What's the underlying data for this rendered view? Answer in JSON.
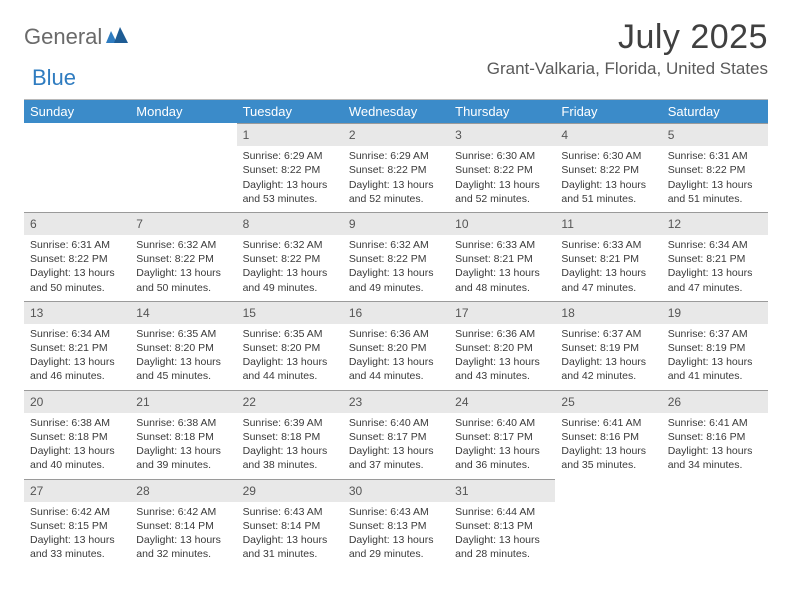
{
  "logo": {
    "word1": "General",
    "word2": "Blue"
  },
  "title": "July 2025",
  "location": "Grant-Valkaria, Florida, United States",
  "colors": {
    "header_bg": "#3b8bc9",
    "header_text": "#ffffff",
    "daynum_bg": "#e8e8e8",
    "rule": "#9a9a9a"
  },
  "weekdays": [
    "Sunday",
    "Monday",
    "Tuesday",
    "Wednesday",
    "Thursday",
    "Friday",
    "Saturday"
  ],
  "first_weekday_index": 2,
  "days": [
    {
      "n": 1,
      "sunrise": "6:29 AM",
      "sunset": "8:22 PM",
      "daylight": "13 hours and 53 minutes."
    },
    {
      "n": 2,
      "sunrise": "6:29 AM",
      "sunset": "8:22 PM",
      "daylight": "13 hours and 52 minutes."
    },
    {
      "n": 3,
      "sunrise": "6:30 AM",
      "sunset": "8:22 PM",
      "daylight": "13 hours and 52 minutes."
    },
    {
      "n": 4,
      "sunrise": "6:30 AM",
      "sunset": "8:22 PM",
      "daylight": "13 hours and 51 minutes."
    },
    {
      "n": 5,
      "sunrise": "6:31 AM",
      "sunset": "8:22 PM",
      "daylight": "13 hours and 51 minutes."
    },
    {
      "n": 6,
      "sunrise": "6:31 AM",
      "sunset": "8:22 PM",
      "daylight": "13 hours and 50 minutes."
    },
    {
      "n": 7,
      "sunrise": "6:32 AM",
      "sunset": "8:22 PM",
      "daylight": "13 hours and 50 minutes."
    },
    {
      "n": 8,
      "sunrise": "6:32 AM",
      "sunset": "8:22 PM",
      "daylight": "13 hours and 49 minutes."
    },
    {
      "n": 9,
      "sunrise": "6:32 AM",
      "sunset": "8:22 PM",
      "daylight": "13 hours and 49 minutes."
    },
    {
      "n": 10,
      "sunrise": "6:33 AM",
      "sunset": "8:21 PM",
      "daylight": "13 hours and 48 minutes."
    },
    {
      "n": 11,
      "sunrise": "6:33 AM",
      "sunset": "8:21 PM",
      "daylight": "13 hours and 47 minutes."
    },
    {
      "n": 12,
      "sunrise": "6:34 AM",
      "sunset": "8:21 PM",
      "daylight": "13 hours and 47 minutes."
    },
    {
      "n": 13,
      "sunrise": "6:34 AM",
      "sunset": "8:21 PM",
      "daylight": "13 hours and 46 minutes."
    },
    {
      "n": 14,
      "sunrise": "6:35 AM",
      "sunset": "8:20 PM",
      "daylight": "13 hours and 45 minutes."
    },
    {
      "n": 15,
      "sunrise": "6:35 AM",
      "sunset": "8:20 PM",
      "daylight": "13 hours and 44 minutes."
    },
    {
      "n": 16,
      "sunrise": "6:36 AM",
      "sunset": "8:20 PM",
      "daylight": "13 hours and 44 minutes."
    },
    {
      "n": 17,
      "sunrise": "6:36 AM",
      "sunset": "8:20 PM",
      "daylight": "13 hours and 43 minutes."
    },
    {
      "n": 18,
      "sunrise": "6:37 AM",
      "sunset": "8:19 PM",
      "daylight": "13 hours and 42 minutes."
    },
    {
      "n": 19,
      "sunrise": "6:37 AM",
      "sunset": "8:19 PM",
      "daylight": "13 hours and 41 minutes."
    },
    {
      "n": 20,
      "sunrise": "6:38 AM",
      "sunset": "8:18 PM",
      "daylight": "13 hours and 40 minutes."
    },
    {
      "n": 21,
      "sunrise": "6:38 AM",
      "sunset": "8:18 PM",
      "daylight": "13 hours and 39 minutes."
    },
    {
      "n": 22,
      "sunrise": "6:39 AM",
      "sunset": "8:18 PM",
      "daylight": "13 hours and 38 minutes."
    },
    {
      "n": 23,
      "sunrise": "6:40 AM",
      "sunset": "8:17 PM",
      "daylight": "13 hours and 37 minutes."
    },
    {
      "n": 24,
      "sunrise": "6:40 AM",
      "sunset": "8:17 PM",
      "daylight": "13 hours and 36 minutes."
    },
    {
      "n": 25,
      "sunrise": "6:41 AM",
      "sunset": "8:16 PM",
      "daylight": "13 hours and 35 minutes."
    },
    {
      "n": 26,
      "sunrise": "6:41 AM",
      "sunset": "8:16 PM",
      "daylight": "13 hours and 34 minutes."
    },
    {
      "n": 27,
      "sunrise": "6:42 AM",
      "sunset": "8:15 PM",
      "daylight": "13 hours and 33 minutes."
    },
    {
      "n": 28,
      "sunrise": "6:42 AM",
      "sunset": "8:14 PM",
      "daylight": "13 hours and 32 minutes."
    },
    {
      "n": 29,
      "sunrise": "6:43 AM",
      "sunset": "8:14 PM",
      "daylight": "13 hours and 31 minutes."
    },
    {
      "n": 30,
      "sunrise": "6:43 AM",
      "sunset": "8:13 PM",
      "daylight": "13 hours and 29 minutes."
    },
    {
      "n": 31,
      "sunrise": "6:44 AM",
      "sunset": "8:13 PM",
      "daylight": "13 hours and 28 minutes."
    }
  ],
  "labels": {
    "sunrise": "Sunrise:",
    "sunset": "Sunset:",
    "daylight": "Daylight:"
  }
}
